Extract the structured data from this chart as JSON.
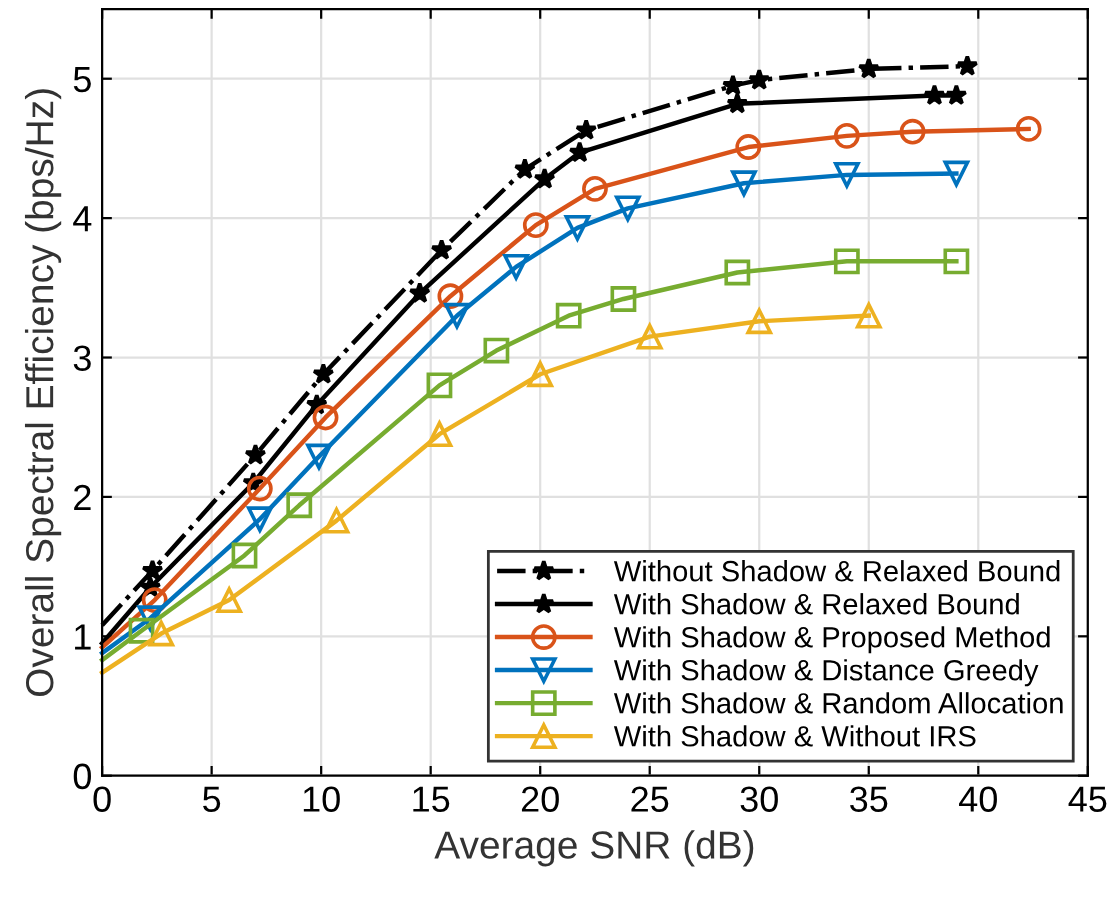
{
  "chart_data": {
    "type": "line",
    "xlabel": "Average SNR (dB)",
    "ylabel": "Overall Spectral Efficiency (bps/Hz)",
    "xlim": [
      0,
      45
    ],
    "xticks": [
      0,
      5,
      10,
      15,
      20,
      25,
      30,
      35,
      40,
      45
    ],
    "ylim": [
      0,
      5.5
    ],
    "yticks": [
      0,
      1,
      2,
      3,
      4,
      5
    ],
    "grid": true,
    "legend": "bottom right",
    "series": [
      {
        "name": "Without Shadow & Relaxed Bound",
        "color": "#000000",
        "marker": "star",
        "line_style": "dashdot",
        "x": [
          0,
          2.3,
          7.0,
          10.1,
          15.5,
          19.3,
          22.1,
          28.8,
          30,
          35,
          39.5
        ],
        "values": [
          1.08,
          1.47,
          2.3,
          2.88,
          3.77,
          4.35,
          4.63,
          4.95,
          4.99,
          5.07,
          5.09
        ]
      },
      {
        "name": "With Shadow & Relaxed Bound",
        "color": "#000000",
        "marker": "star",
        "line_style": "solid",
        "x": [
          0,
          2.2,
          6.9,
          9.8,
          14.5,
          20.2,
          21.8,
          29,
          38,
          39
        ],
        "values": [
          0.95,
          1.35,
          2.1,
          2.66,
          3.46,
          4.28,
          4.47,
          4.82,
          4.88,
          4.88
        ]
      },
      {
        "name": "With Shadow & Proposed Method",
        "color": "#d95319",
        "marker": "circle",
        "line_style": "solid",
        "x": [
          0,
          2.4,
          7.2,
          10.2,
          15.9,
          19.8,
          22.5,
          29.5,
          34,
          37,
          42.3
        ],
        "values": [
          0.92,
          1.26,
          2.06,
          2.57,
          3.44,
          3.95,
          4.21,
          4.51,
          4.59,
          4.62,
          4.64
        ]
      },
      {
        "name": "With Shadow & Distance Greedy",
        "color": "#0072bd",
        "marker": "triangle_down",
        "line_style": "solid",
        "x": [
          0,
          2.2,
          7.2,
          9.9,
          16.2,
          18.9,
          21.7,
          24,
          29.3,
          34,
          39
        ],
        "values": [
          0.88,
          1.13,
          1.84,
          2.29,
          3.3,
          3.65,
          3.93,
          4.07,
          4.25,
          4.31,
          4.32
        ]
      },
      {
        "name": "With Shadow & Random Allocation",
        "color": "#77ac30",
        "marker": "square",
        "line_style": "solid",
        "x": [
          0,
          1.8,
          6.5,
          9.0,
          15.4,
          18.0,
          21.3,
          23.8,
          29,
          34,
          39
        ],
        "values": [
          0.83,
          1.04,
          1.58,
          1.94,
          2.8,
          3.05,
          3.3,
          3.42,
          3.61,
          3.69,
          3.69
        ]
      },
      {
        "name": "With Shadow & Without IRS",
        "color": "#edb120",
        "marker": "triangle",
        "line_style": "solid",
        "x": [
          0,
          2.7,
          5.8,
          10.7,
          15.4,
          20,
          25,
          30,
          35
        ],
        "values": [
          0.74,
          1.02,
          1.26,
          1.83,
          2.45,
          2.88,
          3.15,
          3.26,
          3.3
        ]
      }
    ]
  }
}
